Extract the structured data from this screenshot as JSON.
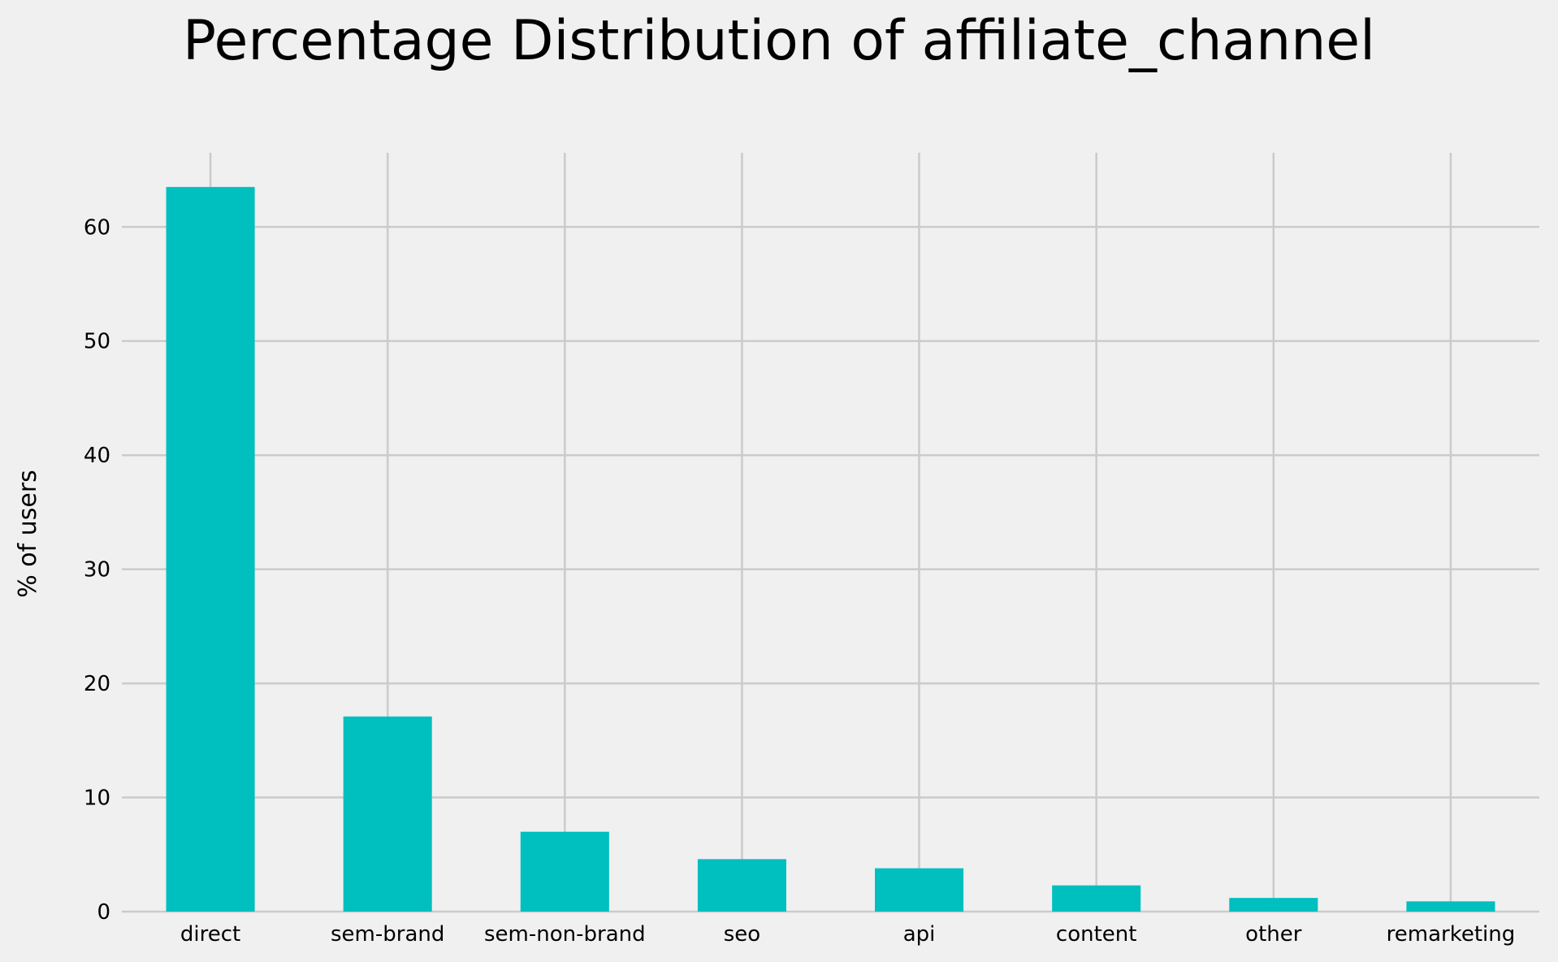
{
  "chart_data": {
    "type": "bar",
    "title": "Percentage Distribution of affiliate_channel",
    "xlabel": "",
    "ylabel": "% of users",
    "categories": [
      "direct",
      "sem-brand",
      "sem-non-brand",
      "seo",
      "api",
      "content",
      "other",
      "remarketing"
    ],
    "values": [
      63.5,
      17.1,
      7.0,
      4.6,
      3.8,
      2.3,
      1.2,
      0.9
    ],
    "ylim": [
      0,
      66.5
    ],
    "yticks": [
      0,
      10,
      20,
      30,
      40,
      50,
      60
    ],
    "grid": true,
    "legend": "none",
    "bar_color": "#00bfbf",
    "background_color": "#f0f0f0",
    "grid_color": "#cbcbcb"
  }
}
